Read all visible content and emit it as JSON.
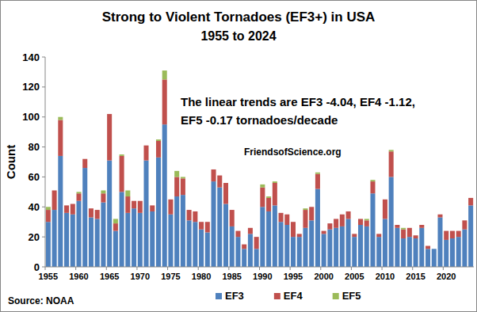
{
  "chart_data": {
    "type": "bar",
    "stacked": true,
    "title": "Strong to Violent Tornadoes  (EF3+) in USA",
    "subtitle": "1955 to 2024",
    "y_label": "Count",
    "annotations": [
      "The linear trends are EF3 -4.04, EF4 -1.12,",
      "EF5 -0.17 tornadoes/decade",
      "FriendsofScience.org",
      "Source: NOAA"
    ],
    "categories": [
      "1955",
      null,
      null,
      null,
      null,
      "1960",
      null,
      null,
      null,
      null,
      "1965",
      null,
      null,
      null,
      null,
      "1970",
      null,
      null,
      null,
      null,
      "1975",
      null,
      null,
      null,
      null,
      "1980",
      null,
      null,
      null,
      null,
      "1985",
      null,
      null,
      null,
      null,
      "1990",
      null,
      null,
      null,
      null,
      "1995",
      null,
      null,
      null,
      null,
      "2000",
      null,
      null,
      null,
      null,
      "2005",
      null,
      null,
      null,
      null,
      "2010",
      null,
      null,
      null,
      null,
      "2015",
      null,
      null,
      null,
      null,
      "2020",
      null,
      null,
      null,
      null
    ],
    "series": [
      {
        "name": "EF3",
        "color": "#4f81bd",
        "values": [
          30,
          38,
          74,
          36,
          35,
          44,
          66,
          33,
          32,
          43,
          71,
          24,
          50,
          36,
          39,
          36,
          71,
          37,
          73,
          95,
          35,
          47,
          48,
          31,
          30,
          25,
          23,
          57,
          53,
          42,
          27,
          20,
          12,
          22,
          12,
          40,
          37,
          41,
          30,
          28,
          20,
          20,
          26,
          31,
          52,
          22,
          25,
          26,
          27,
          32,
          20,
          28,
          27,
          49,
          20,
          32,
          60,
          26,
          19,
          20,
          19,
          26,
          12,
          12,
          33,
          18,
          19,
          20,
          25,
          41
        ]
      },
      {
        "name": "EF4",
        "color": "#c0504d",
        "values": [
          8,
          13,
          24,
          5,
          7,
          5,
          6,
          6,
          6,
          6,
          31,
          5,
          24,
          11,
          5,
          8,
          10,
          4,
          11,
          30,
          10,
          13,
          11,
          7,
          7,
          5,
          7,
          8,
          8,
          14,
          11,
          4,
          3,
          4,
          8,
          13,
          9,
          15,
          6,
          7,
          10,
          2,
          12,
          9,
          10,
          2,
          4,
          6,
          8,
          5,
          2,
          4,
          4,
          8,
          2,
          13,
          17,
          2,
          6,
          6,
          2,
          2,
          2,
          0,
          2,
          6,
          5,
          4,
          6,
          5
        ]
      },
      {
        "name": "EF5",
        "color": "#9bbb59",
        "values": [
          2,
          0,
          2,
          0,
          0,
          1,
          0,
          0,
          0,
          2,
          0,
          3,
          1,
          4,
          0,
          0,
          0,
          0,
          1,
          6,
          0,
          4,
          1,
          0,
          0,
          0,
          0,
          0,
          0,
          0,
          0,
          0,
          0,
          0,
          0,
          2,
          1,
          1,
          0,
          0,
          0,
          0,
          1,
          0,
          1,
          0,
          0,
          0,
          0,
          0,
          0,
          0,
          1,
          1,
          0,
          0,
          1,
          0,
          1,
          0,
          0,
          0,
          0,
          0,
          0,
          0,
          0,
          0,
          0,
          0
        ]
      }
    ],
    "ylim": [
      0,
      140
    ],
    "yticks": [
      0,
      20,
      40,
      60,
      80,
      100,
      120,
      140
    ],
    "grid": false,
    "legend": "bottom"
  }
}
